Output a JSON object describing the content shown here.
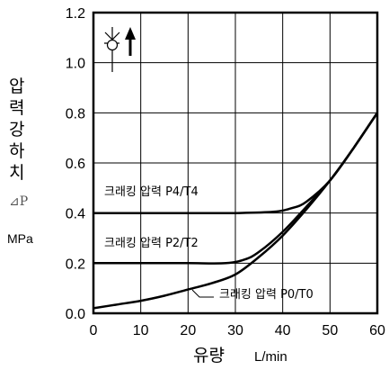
{
  "chart_data": {
    "type": "line",
    "xlabel_main": "유량",
    "xlabel_unit": "L/min",
    "ylabel_chars": [
      "압",
      "력",
      "강",
      "하",
      "치"
    ],
    "ylabel_symbol": "⊿P",
    "ylabel_unit": "MPa",
    "xlim": [
      0,
      60
    ],
    "ylim": [
      0,
      1.2
    ],
    "xticks": [
      "0",
      "10",
      "20",
      "30",
      "40",
      "50",
      "60"
    ],
    "yticks": [
      "0.0",
      "0.2",
      "0.4",
      "0.6",
      "0.8",
      "1.0",
      "1.2"
    ],
    "grid": true,
    "series": [
      {
        "name": "크래킹 압력 P0/T0",
        "x": [
          0,
          5,
          10,
          15,
          20,
          25,
          30,
          35,
          40,
          45,
          50,
          55,
          60
        ],
        "y": [
          0.02,
          0.035,
          0.05,
          0.07,
          0.095,
          0.12,
          0.155,
          0.225,
          0.31,
          0.415,
          0.53,
          0.66,
          0.8
        ]
      },
      {
        "name": "크래킹 압력 P2/T2",
        "x": [
          0,
          10,
          20,
          28,
          32,
          35,
          40,
          45,
          50,
          55,
          60
        ],
        "y": [
          0.2,
          0.2,
          0.2,
          0.2,
          0.215,
          0.245,
          0.325,
          0.425,
          0.53,
          0.66,
          0.8
        ]
      },
      {
        "name": "크래킹 압력 P4/T4",
        "x": [
          0,
          10,
          20,
          30,
          38,
          42,
          45,
          50,
          55,
          60
        ],
        "y": [
          0.4,
          0.4,
          0.4,
          0.4,
          0.405,
          0.42,
          0.445,
          0.53,
          0.66,
          0.8
        ]
      }
    ],
    "annotations": {
      "p4": "크래킹 압력 P4/T4",
      "p2": "크래킹 압력 P2/T2",
      "p0": "크래킹 압력 P0/T0"
    },
    "symbol_icon": "check-valve-symbol-icon"
  }
}
